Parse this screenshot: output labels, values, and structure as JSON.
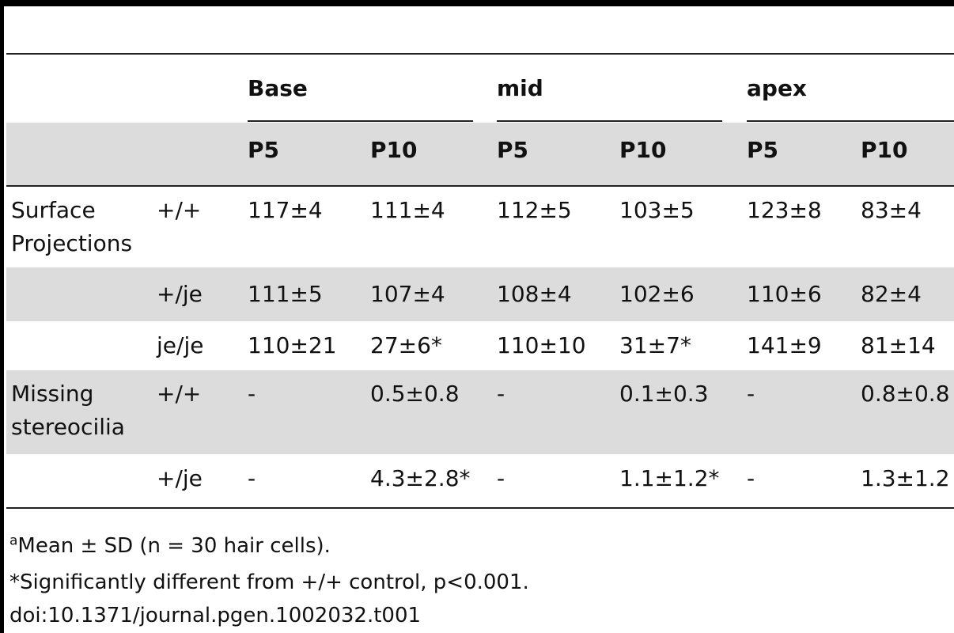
{
  "table": {
    "groups": [
      "Base",
      "mid",
      "apex"
    ],
    "subheaders": [
      "P5",
      "P10",
      "P5",
      "P10",
      "P5",
      "P10"
    ],
    "rows": [
      {
        "label": [
          "Surface",
          "Projections"
        ],
        "genotype": "+/+",
        "values": [
          "117±4",
          "111±4",
          "112±5",
          "103±5",
          "123±8",
          "83±4"
        ]
      },
      {
        "label": [
          "",
          ""
        ],
        "genotype": "+/je",
        "values": [
          "111±5",
          "107±4",
          "108±4",
          "102±6",
          "110±6",
          "82±4"
        ]
      },
      {
        "label": [
          "",
          ""
        ],
        "genotype": "je/je",
        "values": [
          "110±21",
          "27±6*",
          "110±10",
          "31±7*",
          "141±9",
          "81±14"
        ]
      },
      {
        "label": [
          "Missing",
          "stereocilia"
        ],
        "genotype": "+/+",
        "values": [
          "-",
          "0.5±0.8",
          "-",
          "0.1±0.3",
          "-",
          "0.8±0.8"
        ]
      },
      {
        "label": [
          "",
          ""
        ],
        "genotype": "+/je",
        "values": [
          "-",
          "4.3±2.8*",
          "-",
          "1.1±1.2*",
          "-",
          "1.3±1.2"
        ]
      }
    ]
  },
  "footnotes": {
    "sup": "a",
    "note1": "Mean ± SD (n = 30 hair cells).",
    "note2": "*Significantly different from +/+ control, p<0.001.",
    "doi": "doi:10.1371/journal.pgen.1002032.t001"
  }
}
